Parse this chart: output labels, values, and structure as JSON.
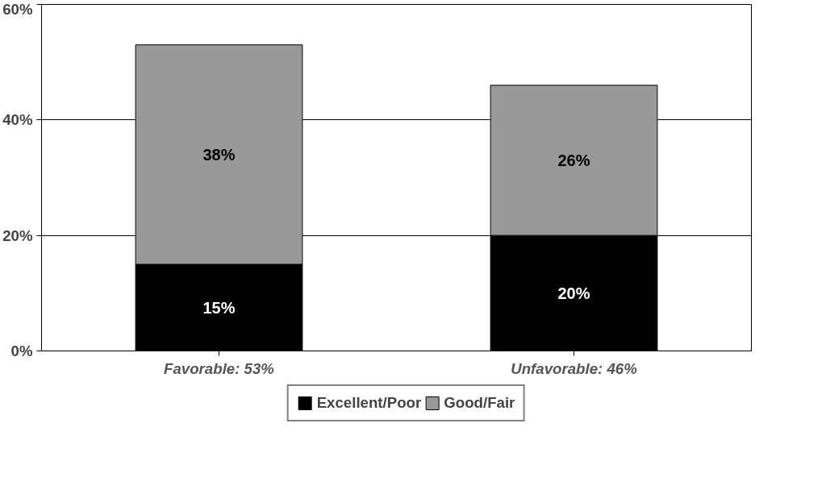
{
  "chart_data": {
    "type": "bar",
    "stacked": true,
    "categories": [
      "Favorable: 53%",
      "Unfavorable: 46%"
    ],
    "series": [
      {
        "name": "Excellent/Poor",
        "color": "#000000",
        "values": [
          15,
          20
        ],
        "value_labels": [
          "15%",
          "20%"
        ]
      },
      {
        "name": "Good/Fair",
        "color": "#999999",
        "values": [
          38,
          26
        ],
        "value_labels": [
          "38%",
          "26%"
        ]
      }
    ],
    "ylim": [
      0,
      60
    ],
    "yticks": [
      {
        "value": 0,
        "label": "0%"
      },
      {
        "value": 20,
        "label": "20%"
      },
      {
        "value": 40,
        "label": "40%"
      },
      {
        "value": 60,
        "label": "60%"
      }
    ],
    "grid": "y",
    "legend": "bottom"
  }
}
